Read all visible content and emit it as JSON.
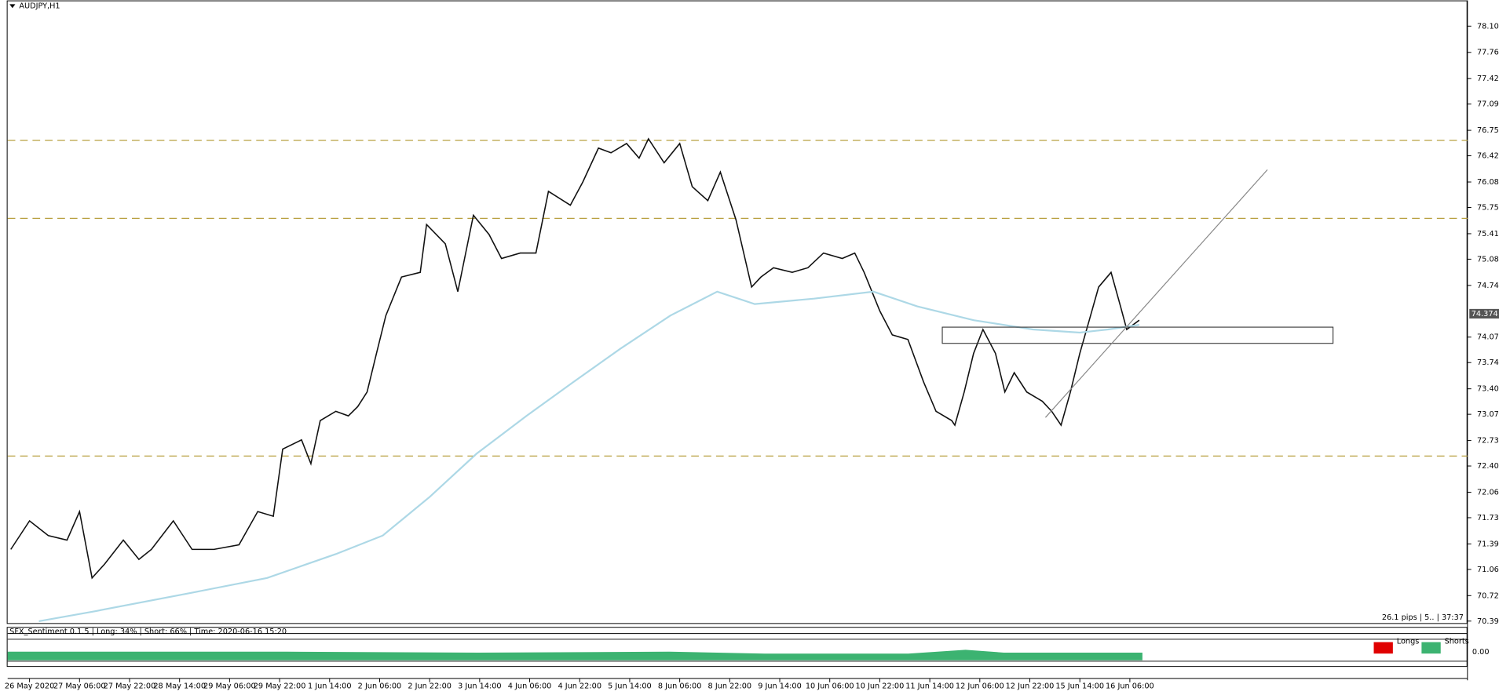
{
  "chart_data": {
    "type": "line",
    "title": "AUDJPY,H1",
    "xlim": [
      0,
      467
    ],
    "ylim": [
      70.366,
      78.435
    ],
    "xticks": [
      {
        "value": 7,
        "label": "26 May 2020"
      },
      {
        "value": 23,
        "label": "27 May 06:00"
      },
      {
        "value": 39,
        "label": "27 May 22:00"
      },
      {
        "value": 55,
        "label": "28 May 14:00"
      },
      {
        "value": 71,
        "label": "29 May 06:00"
      },
      {
        "value": 87,
        "label": "29 May 22:00"
      },
      {
        "value": 103,
        "label": "1 Jun 14:00"
      },
      {
        "value": 119,
        "label": "2 Jun 06:00"
      },
      {
        "value": 135,
        "label": "2 Jun 22:00"
      },
      {
        "value": 151,
        "label": "3 Jun 14:00"
      },
      {
        "value": 167,
        "label": "4 Jun 06:00"
      },
      {
        "value": 183,
        "label": "4 Jun 22:00"
      },
      {
        "value": 199,
        "label": "5 Jun 14:00"
      },
      {
        "value": 215,
        "label": "8 Jun 06:00"
      },
      {
        "value": 231,
        "label": "8 Jun 22:00"
      },
      {
        "value": 247,
        "label": "9 Jun 14:00"
      },
      {
        "value": 263,
        "label": "10 Jun 06:00"
      },
      {
        "value": 279,
        "label": "10 Jun 22:00"
      },
      {
        "value": 295,
        "label": "11 Jun 14:00"
      },
      {
        "value": 311,
        "label": "12 Jun 06:00"
      },
      {
        "value": 327,
        "label": "12 Jun 22:00"
      },
      {
        "value": 343,
        "label": "15 Jun 14:00"
      },
      {
        "value": 359,
        "label": "16 Jun 06:00"
      }
    ],
    "yticks": [
      78.101,
      77.761,
      77.421,
      77.091,
      76.751,
      76.421,
      76.081,
      75.751,
      75.411,
      75.081,
      74.741,
      74.071,
      73.741,
      73.401,
      73.071,
      72.731,
      72.401,
      72.061,
      71.731,
      71.391,
      71.061,
      70.721,
      70.391
    ],
    "series": [
      {
        "color": "#111111",
        "x": [
          1,
          7,
          13,
          19,
          23,
          27,
          31,
          37,
          42,
          46,
          53,
          59,
          66,
          74,
          80,
          85,
          88,
          94,
          97,
          100,
          105,
          109,
          112,
          115,
          118,
          121,
          126,
          132,
          134,
          140,
          144,
          149,
          154,
          158,
          164,
          169,
          173,
          180,
          184,
          189,
          193,
          198,
          202,
          205,
          210,
          215,
          219,
          224,
          228,
          233,
          238,
          241,
          245,
          251,
          256,
          261,
          267,
          271,
          274,
          279,
          283,
          288,
          293,
          297,
          302,
          303,
          306,
          309,
          312,
          316,
          319,
          322,
          326,
          331,
          334,
          337,
          340,
          343,
          346,
          349,
          353,
          356,
          358,
          362
        ],
        "values": [
          71.32,
          71.69,
          71.5,
          71.44,
          71.81,
          70.95,
          71.13,
          71.44,
          71.19,
          71.32,
          71.69,
          71.32,
          71.32,
          71.38,
          71.81,
          71.75,
          72.62,
          72.74,
          72.43,
          72.99,
          73.11,
          73.05,
          73.17,
          73.36,
          73.86,
          74.35,
          74.85,
          74.91,
          75.53,
          75.28,
          74.66,
          75.65,
          75.4,
          75.09,
          75.16,
          75.16,
          75.96,
          75.78,
          76.08,
          76.52,
          76.46,
          76.58,
          76.39,
          76.64,
          76.33,
          76.58,
          76.02,
          75.84,
          76.21,
          75.59,
          74.72,
          74.85,
          74.97,
          74.91,
          74.97,
          75.16,
          75.09,
          75.16,
          74.91,
          74.41,
          74.1,
          74.04,
          73.49,
          73.11,
          72.99,
          72.93,
          73.36,
          73.86,
          74.17,
          73.86,
          73.36,
          73.61,
          73.36,
          73.24,
          73.11,
          72.93,
          73.36,
          73.86,
          74.29,
          74.72,
          74.91,
          74.47,
          74.17,
          74.29
        ]
      },
      {
        "color": "#add8e6",
        "x": [
          10,
          28,
          59,
          83,
          105,
          120,
          135,
          150,
          166,
          181,
          196,
          212,
          227,
          239,
          258,
          277,
          291,
          309,
          328,
          343,
          352,
          362
        ],
        "values": [
          70.39,
          70.52,
          70.76,
          70.95,
          71.26,
          71.5,
          72.0,
          72.56,
          73.05,
          73.49,
          73.92,
          74.35,
          74.66,
          74.5,
          74.57,
          74.66,
          74.47,
          74.29,
          74.17,
          74.13,
          74.17,
          74.23
        ]
      }
    ],
    "hlines": [
      76.62,
      75.61,
      72.53
    ],
    "hline_color": "#b8a040",
    "trendline": {
      "x": [
        332,
        403
      ],
      "values": [
        73.03,
        76.24
      ]
    },
    "zone": {
      "x": [
        299,
        424
      ],
      "values": [
        74.2,
        73.99
      ]
    },
    "current_price": {
      "value": 74.374,
      "label": "74.374"
    },
    "info": "26.1 pips | 5.. | 37:37",
    "indicator": {
      "title": "SFX_Sentiment 0.1.5 | Long: 34% | Short: 66% | Time: 2020-06-16 15:20",
      "legend": [
        {
          "name": "Longs",
          "color": "#e00000"
        },
        {
          "name": "Shorts",
          "color": "#3cb371"
        }
      ],
      "zero_label": "0.00"
    }
  }
}
